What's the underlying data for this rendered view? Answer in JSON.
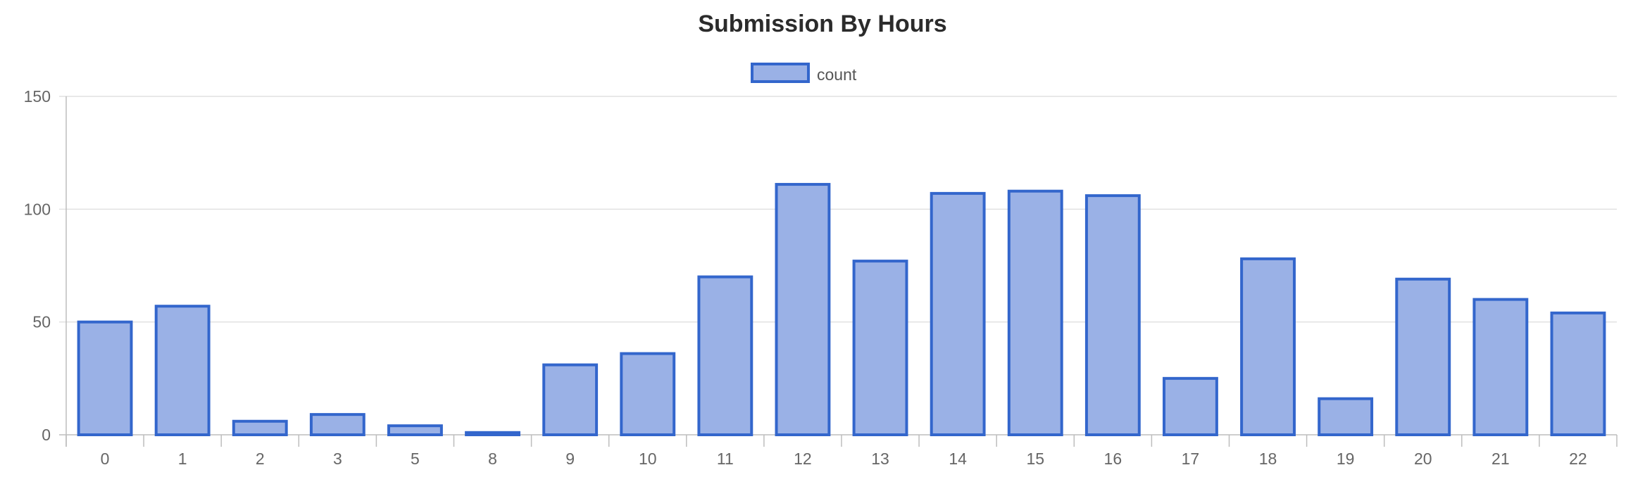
{
  "chart_data": {
    "type": "bar",
    "title": "Submission By Hours",
    "legend": {
      "position": "top-center"
    },
    "categories": [
      "0",
      "1",
      "2",
      "3",
      "5",
      "8",
      "9",
      "10",
      "11",
      "12",
      "13",
      "14",
      "15",
      "16",
      "17",
      "18",
      "19",
      "20",
      "21",
      "22"
    ],
    "series": [
      {
        "name": "count",
        "values": [
          50,
          57,
          6,
          9,
          4,
          1,
          31,
          36,
          70,
          111,
          77,
          107,
          108,
          106,
          25,
          78,
          16,
          69,
          60,
          54
        ]
      }
    ],
    "yticks": [
      "0",
      "50",
      "100",
      "150"
    ],
    "ylim": [
      0,
      150
    ],
    "grid": true,
    "colors": {
      "bar_fill": "#9ab1e6",
      "bar_border": "#3366cc"
    }
  }
}
